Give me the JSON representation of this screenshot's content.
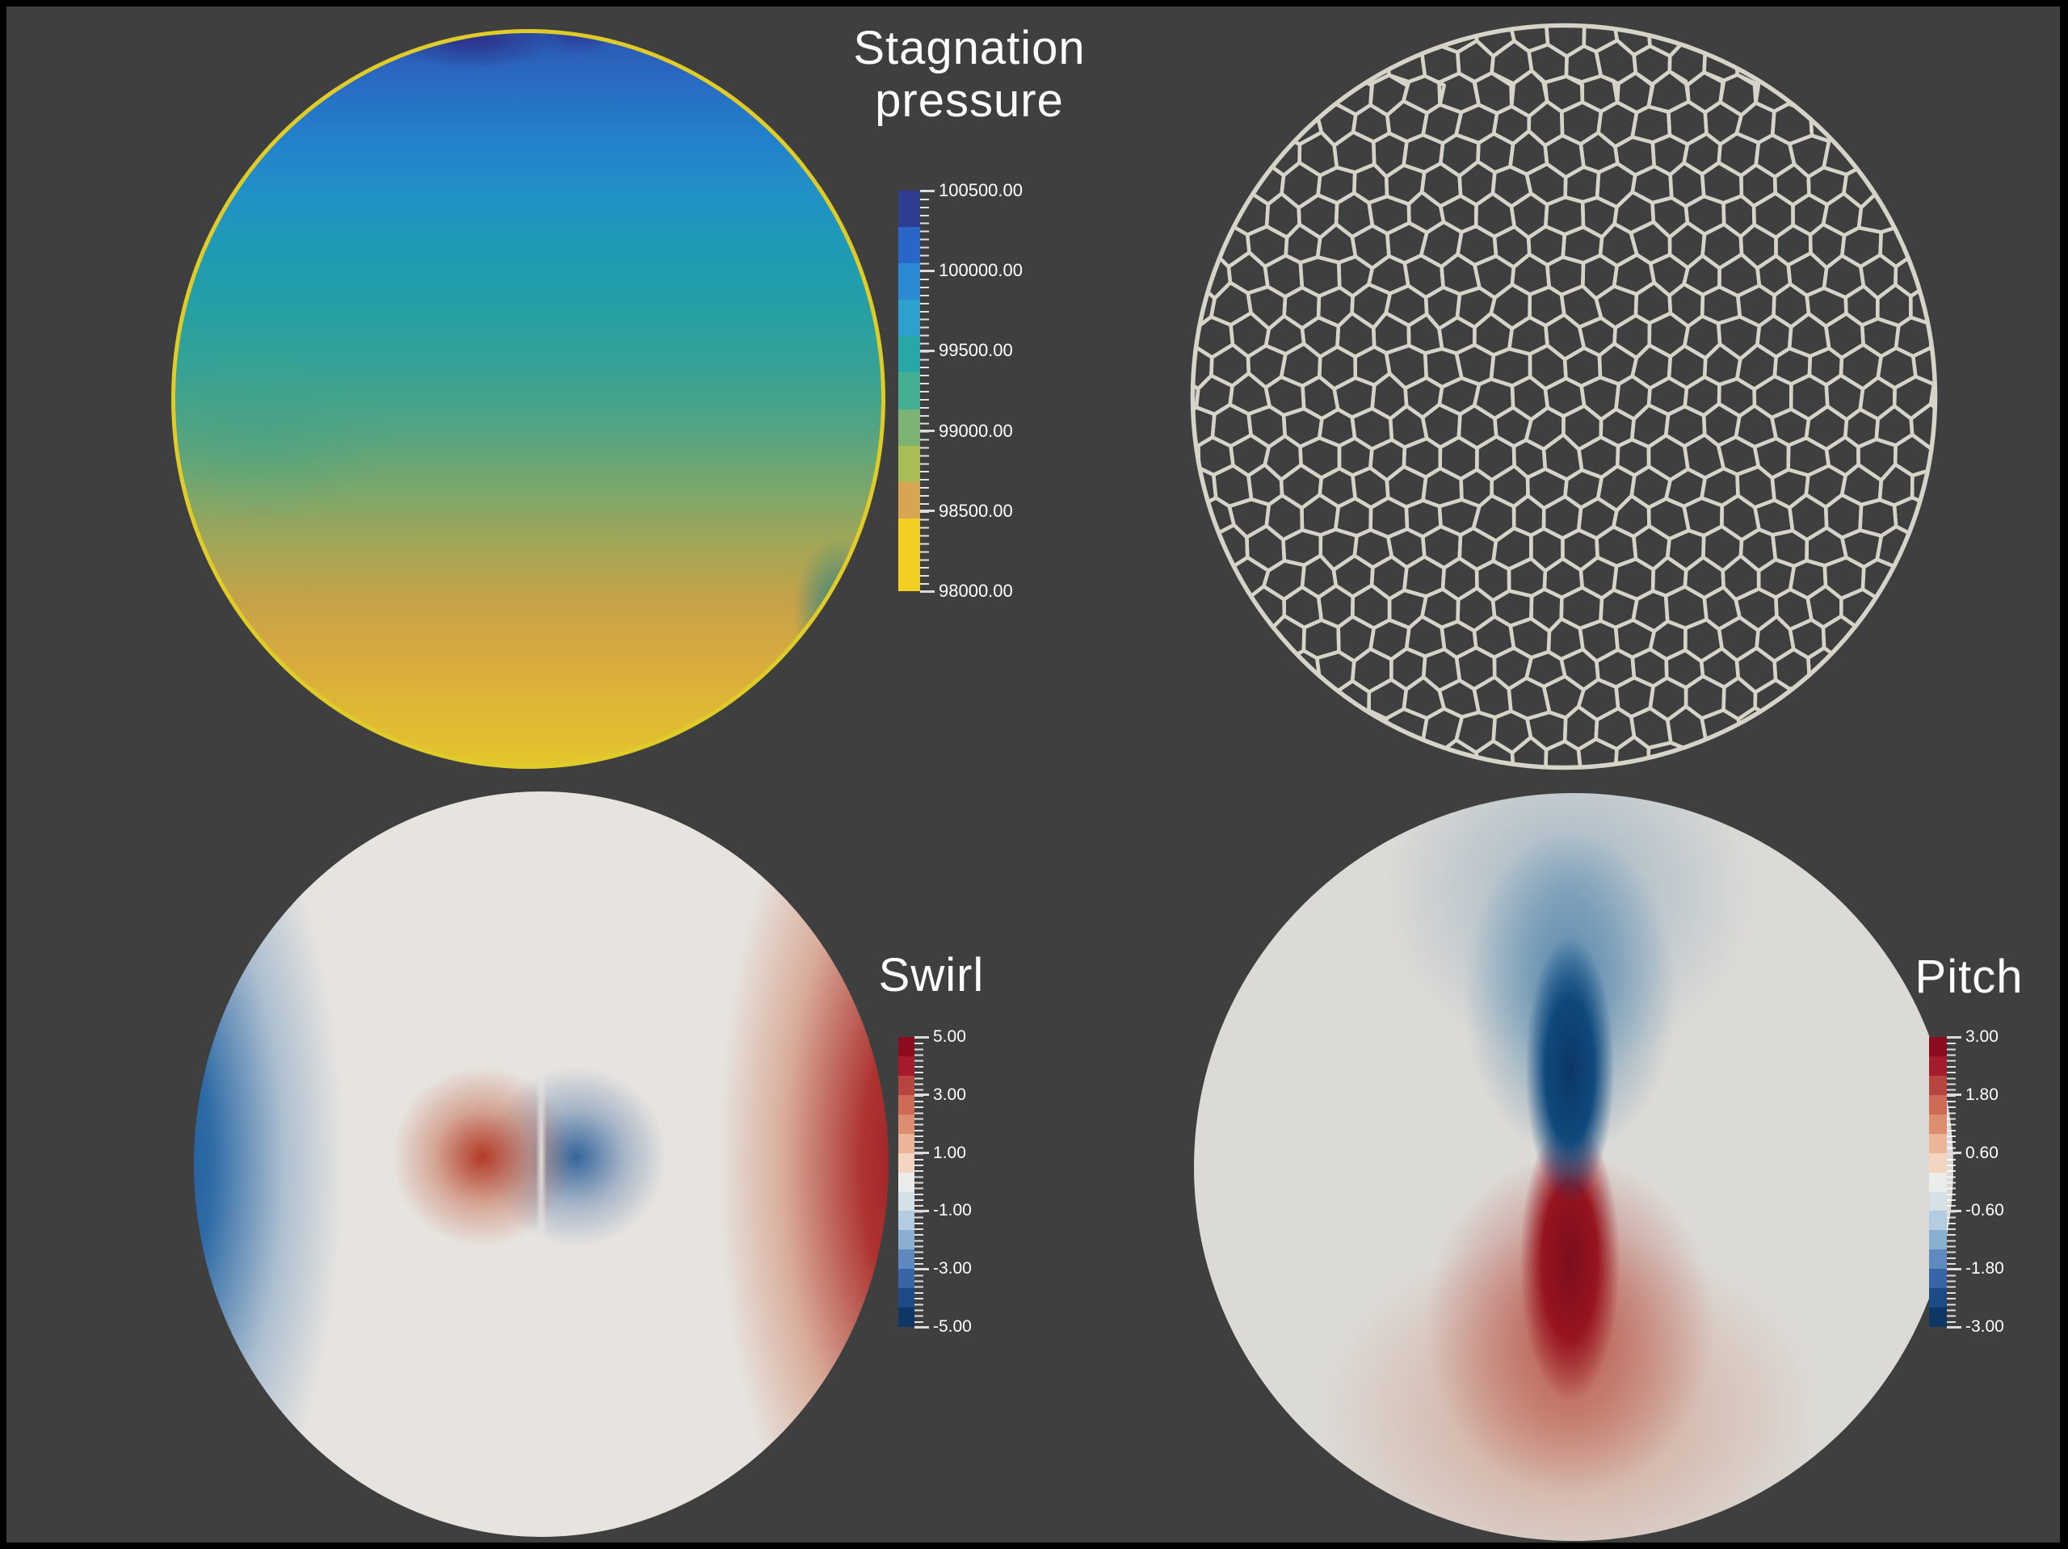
{
  "figure": {
    "background_color": "#3f3f3f",
    "frame_color": "#000000",
    "text_color": "#ffffff"
  },
  "panels": {
    "stagnation": {
      "title_lines": [
        "Stagnation",
        "pressure"
      ],
      "colorbar": {
        "tick_labels": [
          "100500.00",
          "100000.00",
          "99500.00",
          "99000.00",
          "98500.00",
          "98000.00"
        ],
        "bands": [
          "#2e3d92",
          "#2966c8",
          "#2c8ad4",
          "#2da0cd",
          "#27a7a8",
          "#44af92",
          "#7cb573",
          "#abbd57",
          "#d6a653",
          "#f2d023",
          "#f2d023"
        ]
      },
      "rim_color": "#dfcc28"
    },
    "mesh": {
      "line_color": "#d6d3c9",
      "cell_size": 25,
      "stroke_width": 4.5,
      "rim_stroke_width": 5.5,
      "outer_radius": 462,
      "jitter": 3.8
    },
    "swirl": {
      "title": "Swirl",
      "colorbar": {
        "tick_labels": [
          "5.00",
          "3.00",
          "1.00",
          "-1.00",
          "-3.00",
          "-5.00"
        ],
        "bands": [
          "#8b0b1f",
          "#a41c2e",
          "#b84440",
          "#cc6a55",
          "#dd8e70",
          "#ebb599",
          "#f4d5c2",
          "#ececea",
          "#d5e0e7",
          "#b3cce0",
          "#8aafd1",
          "#5f8ac0",
          "#3765a8",
          "#1c4a85",
          "#0d3866"
        ]
      }
    },
    "pitch": {
      "title": "Pitch",
      "colorbar": {
        "tick_labels": [
          "3.00",
          "1.80",
          "0.60",
          "-0.60",
          "-1.80",
          "-3.00"
        ],
        "bands": [
          "#8b0b1f",
          "#a41c2e",
          "#b84440",
          "#cc6a55",
          "#dd8e70",
          "#ebb599",
          "#f4d5c2",
          "#ececea",
          "#d5e0e7",
          "#b3cce0",
          "#8aafd1",
          "#5f8ac0",
          "#3765a8",
          "#1c4a85",
          "#0d3866"
        ]
      }
    }
  },
  "chart_data": [
    {
      "id": "stagnation_pressure",
      "type": "heatmap",
      "title": "Stagnation pressure",
      "legend_position": "right of disk",
      "colorbar": {
        "orientation": "vertical",
        "tick_labels": [
          "100500.00",
          "100000.00",
          "99500.00",
          "99000.00",
          "98500.00",
          "98000.00"
        ],
        "tick_values": [
          100500,
          100000,
          99500,
          99000,
          98500,
          98000
        ],
        "range": [
          98000,
          100500
        ],
        "palette_top_to_bottom": [
          "#2e3d92",
          "#2966c8",
          "#2c8ad4",
          "#2da0cd",
          "#27a7a8",
          "#44af92",
          "#7cb573",
          "#abbd57",
          "#d6a653",
          "#f2d023"
        ]
      },
      "field_pattern": "Circular cross-section contour: highest stagnation pressure (dark blue, ~100300) at top, smoothly decreasing through teal and green to lowest (yellow-orange, ~98200) at bottom; thin yellow boundary ring at the wall; small navy pockets near top rim; teal pocket at lower-right wall."
    },
    {
      "id": "duct_mesh",
      "type": "mesh",
      "title": "",
      "description": "Wireframe honeycomb (hexagonal/polygonal) computational mesh filling the same circular cross-section, about 22 cells across the diameter; light beige lines on dark background with a circular rim.",
      "line_color": "#d6d3c9"
    },
    {
      "id": "swirl",
      "type": "heatmap",
      "title": "Swirl",
      "legend_position": "right of disk",
      "colorbar": {
        "orientation": "vertical",
        "tick_labels": [
          "5.00",
          "3.00",
          "1.00",
          "-1.00",
          "-3.00",
          "-5.00"
        ],
        "tick_values": [
          5,
          3,
          1,
          -1,
          -3,
          -5
        ],
        "range": [
          -5,
          5
        ],
        "palette_top_to_bottom": [
          "#8b0b1f",
          "#a41c2e",
          "#b84440",
          "#cc6a55",
          "#dd8e70",
          "#ebb599",
          "#f4d5c2",
          "#ececea",
          "#d5e0e7",
          "#b3cce0",
          "#8aafd1",
          "#5f8ac0",
          "#3765a8",
          "#1c4a85",
          "#0d3866"
        ]
      },
      "field_pattern": "Cool-to-warm diverging field: strong negative swirl (dark blue crescent) along left wall, strong positive swirl (dark red crescent) along right wall, near-zero whitish ring between, and a small dipole at the center with red just left of the axis and blue just right of it."
    },
    {
      "id": "pitch",
      "type": "heatmap",
      "title": "Pitch",
      "legend_position": "right of disk",
      "colorbar": {
        "orientation": "vertical",
        "tick_labels": [
          "3.00",
          "1.80",
          "0.60",
          "-0.60",
          "-1.80",
          "-3.00"
        ],
        "tick_values": [
          3,
          1.8,
          0.6,
          -0.6,
          -1.8,
          -3
        ],
        "range": [
          -3,
          3
        ],
        "palette_top_to_bottom": [
          "#8b0b1f",
          "#a41c2e",
          "#b84440",
          "#cc6a55",
          "#dd8e70",
          "#ebb599",
          "#f4d5c2",
          "#ececea",
          "#d5e0e7",
          "#b3cce0",
          "#8aafd1",
          "#5f8ac0",
          "#3765a8",
          "#1c4a85",
          "#0d3866"
        ]
      },
      "field_pattern": "Mostly near-zero pale gray disk; strong negative pitch (dark blue teardrop) fanning upward from the center point toward the top, strong positive pitch (dark red teardrop) fanning downward and outward below the center."
    }
  ]
}
